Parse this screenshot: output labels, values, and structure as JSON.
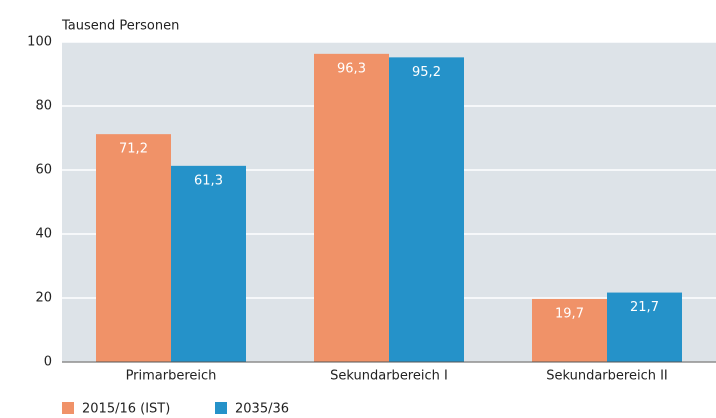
{
  "chart_data": {
    "type": "bar",
    "y_axis_label": "Tausend Personen",
    "categories": [
      "Primarbereich",
      "Sekundarbereich I",
      "Sekundarbereich II"
    ],
    "series": [
      {
        "name": "2015/16 (IST)",
        "color": "#f09268",
        "values": [
          71.2,
          96.3,
          19.7
        ],
        "value_labels": [
          "71,2",
          "96,3",
          "19,7"
        ]
      },
      {
        "name": "2035/36",
        "color": "#2592c9",
        "values": [
          61.3,
          95.2,
          21.7
        ],
        "value_labels": [
          "61,3",
          "95,2",
          "21,7"
        ]
      }
    ],
    "ylim": [
      0,
      100
    ],
    "yticks": [
      0,
      20,
      40,
      60,
      80,
      100
    ],
    "grid": true
  }
}
